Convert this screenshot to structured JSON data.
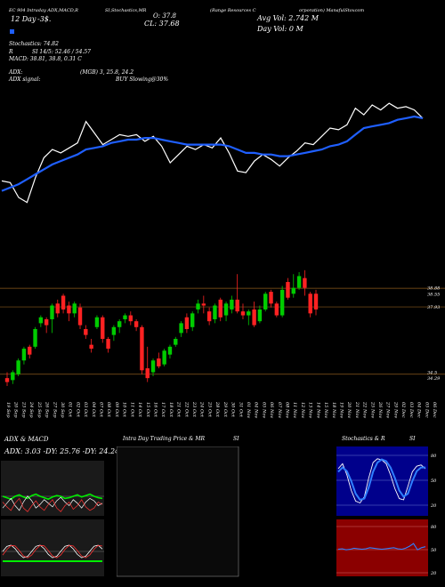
{
  "header": {
    "line1_left": "EC 904 Intraday ADX,MACD,R",
    "line1_mid": "SI,Stochastics,MR",
    "line1_right": "(Range Resources C",
    "line1_right2": "orporation) ManafulStoxcom",
    "day_label": "12 Day",
    "day_value": "-3$.",
    "ohlc_left": "O: 37.8",
    "ohlc_right": "CL: 37.68",
    "avg_vol": "Avg Vol: 2.742  M",
    "day_vol": "Day Vol: 0   M",
    "stoch": "Stochastics: 74.82",
    "rsi": "SI 14/5: 52.46  /  54.57",
    "rsi_prefix": "R",
    "macd": "MACD: 38.81, 38.8, 0.31 C",
    "adx": "ADX:",
    "adx_val": "(MGB) 3, 25.8, 24.2",
    "adx_signal_label": "ADX  signal:",
    "adx_signal": "BUY Slowing@30%"
  },
  "colors": {
    "background": "#000000",
    "ma_line": "#1f5fff",
    "price_line": "#ffffff",
    "up_candle": "#00cc00",
    "down_candle": "#ff2222",
    "grid": "#8b5a1c",
    "red_panel": "#8b0000",
    "blue_panel": "#00008b"
  },
  "chart_data": [
    {
      "type": "line",
      "name": "price-line-overview",
      "series": [
        {
          "values": [
            34.2,
            34.1,
            33.2,
            32.9,
            34.4,
            35.6,
            36.1,
            35.9,
            36.2,
            36.5,
            37.8,
            37.1,
            36.4,
            36.7,
            37.0,
            36.9,
            37.0,
            36.6,
            36.9,
            36.3,
            35.3,
            35.8,
            36.3,
            36.1,
            36.4,
            36.2,
            36.8,
            35.9,
            34.8,
            34.7,
            35.4,
            35.8,
            35.5,
            35.1,
            35.6,
            36.0,
            36.5,
            36.4,
            36.9,
            37.4,
            37.3,
            37.6,
            38.6,
            38.2,
            38.8,
            38.5,
            38.9,
            38.6,
            38.7,
            38.5,
            38.0
          ]
        },
        {
          "values": [
            33.6,
            33.8,
            34.0,
            34.3,
            34.6,
            34.9,
            35.2,
            35.4,
            35.6,
            35.8,
            36.1,
            36.2,
            36.3,
            36.5,
            36.6,
            36.7,
            36.7,
            36.8,
            36.8,
            36.7,
            36.6,
            36.5,
            36.4,
            36.4,
            36.4,
            36.4,
            36.4,
            36.3,
            36.1,
            35.9,
            35.9,
            35.8,
            35.8,
            35.7,
            35.7,
            35.8,
            35.9,
            36.0,
            36.1,
            36.3,
            36.4,
            36.6,
            37.0,
            37.4,
            37.5,
            37.6,
            37.7,
            37.9,
            38.0,
            38.1,
            38.0
          ]
        }
      ]
    },
    {
      "type": "candlestick",
      "name": "daily-candles",
      "y_ticks": [
        "38.88",
        "38.55",
        "37.93",
        "34.5",
        "34.29"
      ],
      "dates": [
        "19 Sep",
        "20 Sep",
        "23 Sep",
        "24 Sep",
        "25 Sep",
        "26 Sep",
        "27 Sep",
        "30 Sep",
        "01 Oct",
        "02 Oct",
        "03 Oct",
        "04 Oct",
        "07 Oct",
        "08 Oct",
        "09 Oct",
        "10 Oct",
        "11 Oct",
        "14 Oct",
        "15 Oct",
        "16 Oct",
        "17 Oct",
        "18 Oct",
        "21 Oct",
        "22 Oct",
        "23 Oct",
        "24 Oct",
        "25 Oct",
        "28 Oct",
        "29 Oct",
        "30 Oct",
        "31 Oct",
        "01 Nov",
        "04 Nov",
        "05 Nov",
        "06 Nov",
        "07 Nov",
        "08 Nov",
        "11 Nov",
        "12 Nov",
        "13 Nov",
        "14 Nov",
        "15 Nov",
        "18 Nov",
        "19 Nov",
        "20 Nov",
        "21 Nov",
        "22 Nov",
        "25 Nov",
        "26 Nov",
        "27 Nov",
        "29 Nov",
        "02 Dec",
        "03 Dec",
        "04 Dec",
        "05 Dec",
        "06 Dec"
      ],
      "candles": [
        {
          "o": 34.3,
          "c": 34.1,
          "h": 34.6,
          "l": 33.9
        },
        {
          "o": 34.2,
          "c": 34.6,
          "h": 34.7,
          "l": 34.0
        },
        {
          "o": 34.5,
          "c": 35.2,
          "h": 35.3,
          "l": 34.4
        },
        {
          "o": 35.2,
          "c": 35.8,
          "h": 35.9,
          "l": 35.0
        },
        {
          "o": 35.9,
          "c": 35.5,
          "h": 36.0,
          "l": 35.3
        },
        {
          "o": 35.9,
          "c": 36.8,
          "h": 36.9,
          "l": 35.8
        },
        {
          "o": 37.1,
          "c": 37.4,
          "h": 37.5,
          "l": 36.9
        },
        {
          "o": 37.3,
          "c": 37.0,
          "h": 37.4,
          "l": 36.6
        },
        {
          "o": 37.3,
          "c": 38.0,
          "h": 38.1,
          "l": 36.6
        },
        {
          "o": 38.1,
          "c": 37.6,
          "h": 38.3,
          "l": 37.4
        },
        {
          "o": 38.5,
          "c": 37.8,
          "h": 38.6,
          "l": 37.6
        },
        {
          "o": 38.0,
          "c": 37.6,
          "h": 38.2,
          "l": 37.2
        },
        {
          "o": 37.6,
          "c": 38.1,
          "h": 38.2,
          "l": 37.4
        },
        {
          "o": 37.9,
          "c": 37.0,
          "h": 38.1,
          "l": 36.8
        },
        {
          "o": 36.8,
          "c": 36.5,
          "h": 37.0,
          "l": 36.3
        },
        {
          "o": 36.0,
          "c": 35.8,
          "h": 36.3,
          "l": 35.6
        },
        {
          "o": 36.9,
          "c": 37.4,
          "h": 37.5,
          "l": 36.8
        },
        {
          "o": 37.4,
          "c": 36.3,
          "h": 37.5,
          "l": 36.1
        },
        {
          "o": 36.3,
          "c": 35.8,
          "h": 36.4,
          "l": 35.6
        },
        {
          "o": 36.5,
          "c": 36.9,
          "h": 37.0,
          "l": 36.2
        },
        {
          "o": 36.9,
          "c": 37.2,
          "h": 37.3,
          "l": 36.6
        },
        {
          "o": 37.3,
          "c": 37.5,
          "h": 37.6,
          "l": 37.1
        },
        {
          "o": 37.5,
          "c": 37.2,
          "h": 37.7,
          "l": 37.0
        },
        {
          "o": 37.2,
          "c": 36.9,
          "h": 37.3,
          "l": 36.7
        },
        {
          "o": 36.9,
          "c": 34.7,
          "h": 37.0,
          "l": 34.5
        },
        {
          "o": 34.8,
          "c": 34.3,
          "h": 35.9,
          "l": 34.1
        },
        {
          "o": 34.6,
          "c": 35.2,
          "h": 35.3,
          "l": 34.4
        },
        {
          "o": 35.3,
          "c": 34.9,
          "h": 35.6,
          "l": 34.8
        },
        {
          "o": 35.0,
          "c": 35.7,
          "h": 35.8,
          "l": 34.9
        },
        {
          "o": 35.5,
          "c": 35.9,
          "h": 36.0,
          "l": 35.3
        },
        {
          "o": 36.0,
          "c": 36.3,
          "h": 36.4,
          "l": 35.9
        },
        {
          "o": 36.6,
          "c": 37.1,
          "h": 37.2,
          "l": 36.4
        },
        {
          "o": 37.4,
          "c": 36.8,
          "h": 37.6,
          "l": 36.6
        },
        {
          "o": 36.9,
          "c": 37.6,
          "h": 37.7,
          "l": 36.7
        },
        {
          "o": 37.8,
          "c": 38.1,
          "h": 38.3,
          "l": 37.6
        },
        {
          "o": 38.1,
          "c": 38.0,
          "h": 38.5,
          "l": 37.6
        },
        {
          "o": 37.7,
          "c": 37.2,
          "h": 37.9,
          "l": 37.0
        },
        {
          "o": 37.3,
          "c": 38.0,
          "h": 38.1,
          "l": 37.1
        },
        {
          "o": 38.3,
          "c": 37.4,
          "h": 38.4,
          "l": 37.2
        },
        {
          "o": 37.5,
          "c": 38.1,
          "h": 38.2,
          "l": 37.2
        },
        {
          "o": 37.8,
          "c": 38.3,
          "h": 38.5,
          "l": 37.6
        },
        {
          "o": 38.3,
          "c": 37.7,
          "h": 39.6,
          "l": 37.6
        },
        {
          "o": 37.7,
          "c": 37.5,
          "h": 38.1,
          "l": 37.3
        },
        {
          "o": 37.5,
          "c": 37.7,
          "h": 37.8,
          "l": 37.0
        },
        {
          "o": 37.8,
          "c": 37.0,
          "h": 38.2,
          "l": 36.9
        },
        {
          "o": 37.2,
          "c": 37.8,
          "h": 38.0,
          "l": 37.1
        },
        {
          "o": 37.8,
          "c": 38.6,
          "h": 38.7,
          "l": 37.7
        },
        {
          "o": 38.7,
          "c": 38.1,
          "h": 38.8,
          "l": 37.9
        },
        {
          "o": 38.1,
          "c": 37.5,
          "h": 38.2,
          "l": 37.4
        },
        {
          "o": 37.5,
          "c": 38.8,
          "h": 39.0,
          "l": 37.4
        },
        {
          "o": 39.2,
          "c": 38.4,
          "h": 39.4,
          "l": 38.3
        },
        {
          "o": 38.6,
          "c": 38.9,
          "h": 39.6,
          "l": 38.4
        },
        {
          "o": 38.9,
          "c": 39.5,
          "h": 39.7,
          "l": 38.8
        },
        {
          "o": 39.4,
          "c": 38.9,
          "h": 39.8,
          "l": 38.5
        },
        {
          "o": 38.6,
          "c": 37.6,
          "h": 38.7,
          "l": 37.4
        },
        {
          "o": 38.6,
          "c": 37.8,
          "h": 38.8,
          "l": 37.5
        }
      ]
    },
    {
      "type": "line",
      "name": "adx-macd-panel",
      "title": "ADX  & MACD",
      "subtitle": "ADX: 3.03  -DY: 25.76  -DY: 24.24",
      "series": [
        {
          "name": "adx",
          "values": [
            30,
            28,
            26,
            30,
            32,
            29,
            27,
            31,
            33,
            30,
            28,
            26,
            29,
            31,
            30,
            27,
            28,
            30,
            32,
            29,
            31,
            33,
            30,
            28,
            27
          ]
        },
        {
          "name": "plus-di",
          "values": [
            20,
            24,
            28,
            22,
            18,
            25,
            30,
            26,
            20,
            23,
            27,
            24,
            21,
            26,
            29,
            25,
            22,
            27,
            24,
            20,
            25,
            28,
            26,
            22,
            24
          ]
        },
        {
          "name": "minus-di",
          "values": [
            25,
            21,
            18,
            24,
            28,
            20,
            17,
            22,
            26,
            21,
            18,
            23,
            27,
            20,
            17,
            22,
            25,
            19,
            22,
            27,
            21,
            18,
            20,
            25,
            23
          ]
        }
      ]
    },
    {
      "type": "line",
      "name": "stochastics-panel",
      "title": "Stochastics & R",
      "title2": "SI",
      "y_ticks": [
        "80",
        "50",
        "20"
      ],
      "series": [
        {
          "name": "stoch-k",
          "values": [
            70,
            78,
            60,
            35,
            18,
            15,
            25,
            55,
            80,
            86,
            84,
            78,
            60,
            38,
            22,
            20,
            42,
            65,
            74,
            76,
            70
          ]
        },
        {
          "name": "stoch-d",
          "values": [
            65,
            72,
            66,
            50,
            30,
            20,
            22,
            40,
            65,
            80,
            85,
            82,
            72,
            55,
            35,
            25,
            30,
            50,
            66,
            72,
            72
          ]
        }
      ]
    },
    {
      "type": "line",
      "name": "rsi-panel",
      "y_ticks": [
        "80",
        "50",
        "20"
      ],
      "series": [
        {
          "name": "rsi",
          "values": [
            49,
            50,
            48,
            49,
            51,
            50,
            49,
            50,
            52,
            51,
            50,
            49,
            50,
            51,
            52,
            50,
            49,
            51,
            55,
            60,
            48,
            52,
            54
          ]
        }
      ]
    },
    {
      "type": "line",
      "name": "mri-panel",
      "title": "Intra  Day Trading Price  & MR",
      "title2": "SI",
      "series": []
    }
  ]
}
